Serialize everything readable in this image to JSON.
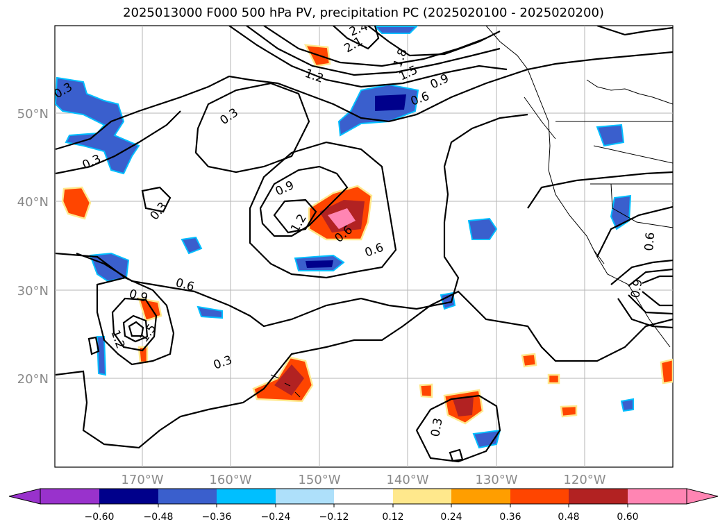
{
  "title": "2025013000 F000 500 hPa PV, precipitation PC (2025020100 - 2025020200)",
  "map": {
    "lon_ticks": [
      "170°W",
      "160°W",
      "150°W",
      "140°W",
      "130°W",
      "120°W"
    ],
    "lat_ticks": [
      "50°N",
      "40°N",
      "30°N",
      "20°N"
    ],
    "grid": true
  },
  "contour_labels": [
    "2.4",
    "2.1",
    "1.8",
    "1.5",
    "1.2",
    "0.9",
    "0.6",
    "0.3",
    "0.3",
    "0.3",
    "0.3",
    "0.9",
    "1.2",
    "0.6",
    "0.6",
    "0.6",
    "0.9",
    "1.2",
    "1.5",
    "0.3",
    "0.3",
    "0.6",
    "0.9"
  ],
  "colorbar": {
    "ticks": [
      "−0.60",
      "−0.48",
      "−0.36",
      "−0.24",
      "−0.12",
      "0.12",
      "0.24",
      "0.36",
      "0.48",
      "0.60"
    ],
    "colors": [
      "#9932cc",
      "#00008b",
      "#3a5fcd",
      "#00bfff",
      "#aee0fa",
      "#ffffff",
      "#ffe88c",
      "#ff9e00",
      "#ff4500",
      "#b22222",
      "#ff85b3"
    ],
    "extend": "both"
  }
}
